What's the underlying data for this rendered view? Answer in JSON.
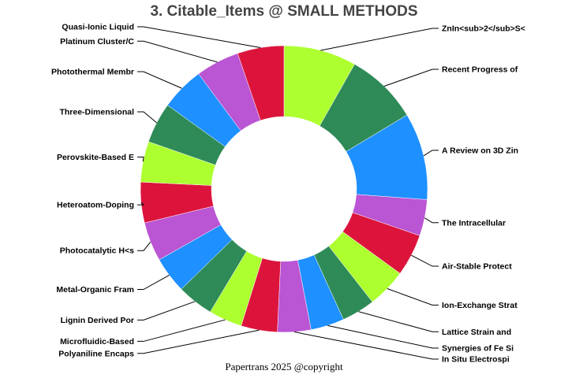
{
  "title": "3. Citable_Items @ SMALL METHODS",
  "footer": "Papertrans 2025 @copyright",
  "colors": [
    "#ADFF2F",
    "#2E8B57",
    "#1E90FF",
    "#BA55D3",
    "#DC143C"
  ],
  "chart_data": {
    "type": "pie",
    "donut": true,
    "start_angle_deg": 0,
    "direction": "clockwise",
    "slices": [
      {
        "label": "ZnIn<sub>2</sub>S<",
        "value": 5.0
      },
      {
        "label": "Recent Progress of",
        "value": 5.0
      },
      {
        "label": "A Review on 3D Zin",
        "value": 6.0
      },
      {
        "label": "The Intracellular",
        "value": 2.5
      },
      {
        "label": "Air-Stable Protect",
        "value": 2.9
      },
      {
        "label": "Ion-Exchange Strat",
        "value": 2.7
      },
      {
        "label": "Lattice Strain and",
        "value": 2.3
      },
      {
        "label": "Synergies of Fe Si",
        "value": 2.3
      },
      {
        "label": "In Situ Electrospi",
        "value": 2.3
      },
      {
        "label": "Polyaniline Encaps",
        "value": 2.5
      },
      {
        "label": "Microfluidic-Based",
        "value": 2.3
      },
      {
        "label": "Lignin Derived Por",
        "value": 2.5
      },
      {
        "label": "Metal-Organic Fram",
        "value": 2.5
      },
      {
        "label": "Photocatalytic H<s",
        "value": 2.7
      },
      {
        "label": "Heteroatom-Doping",
        "value": 2.8
      },
      {
        "label": "Perovskite-Based E",
        "value": 2.8
      },
      {
        "label": "Three-Dimensional",
        "value": 2.8
      },
      {
        "label": "Photothermal Membr",
        "value": 3.0
      },
      {
        "label": "Platinum Cluster/C",
        "value": 3.0
      },
      {
        "label": "Quasi-Ionic Liquid",
        "value": 3.2
      }
    ]
  }
}
